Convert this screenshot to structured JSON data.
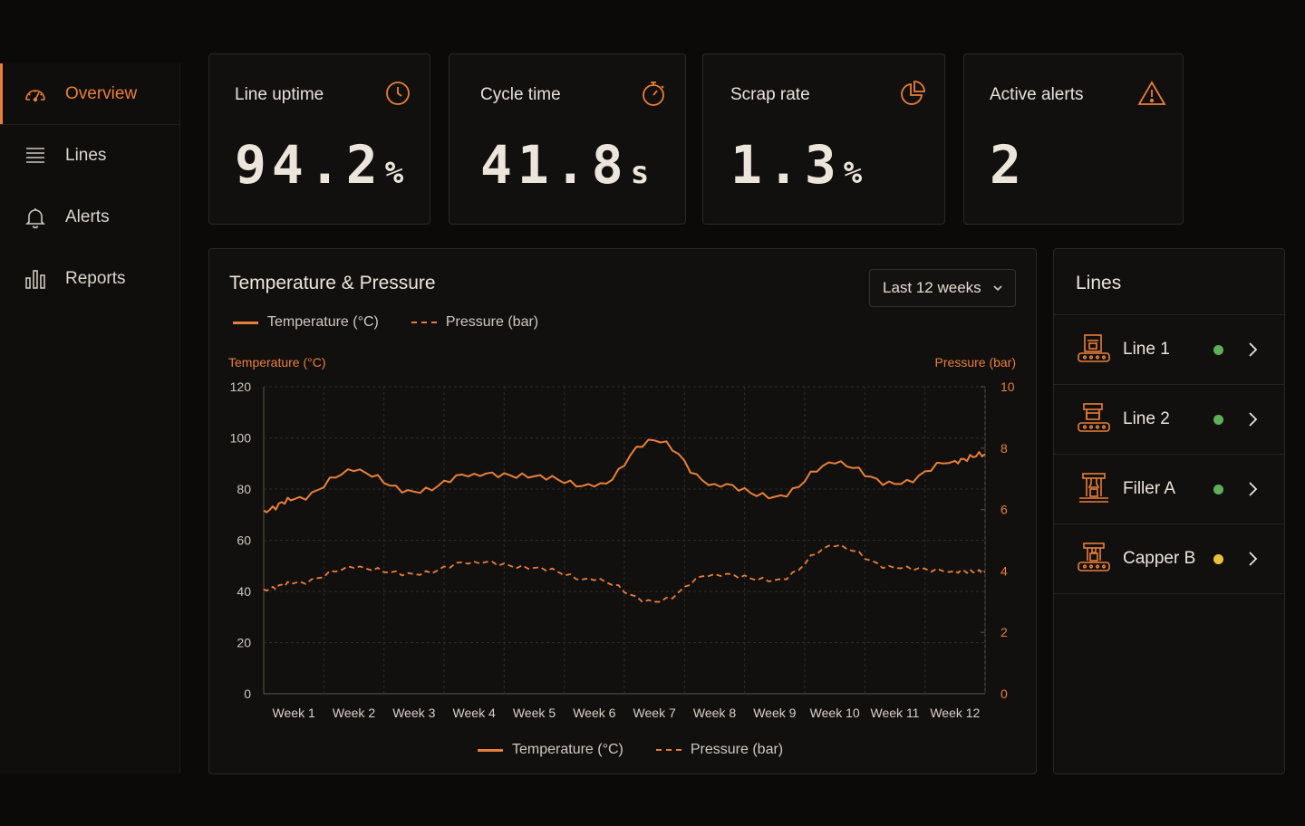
{
  "sidebar": {
    "items": [
      {
        "label": "Overview",
        "icon": "gauge-icon",
        "active": true
      },
      {
        "label": "Lines",
        "icon": "list-icon",
        "active": false
      },
      {
        "label": "Alerts",
        "icon": "bell-icon",
        "active": false
      },
      {
        "label": "Reports",
        "icon": "bar-chart-icon",
        "active": false
      }
    ]
  },
  "kpis": [
    {
      "label": "Line uptime",
      "value": "94.2",
      "unit": "%",
      "icon": "clock-icon"
    },
    {
      "label": "Cycle time",
      "value": "41.8",
      "unit": "s",
      "icon": "stopwatch-icon"
    },
    {
      "label": "Scrap rate",
      "value": "1.3",
      "unit": "%",
      "icon": "pie-icon"
    },
    {
      "label": "Active alerts",
      "value": "2",
      "unit": "",
      "icon": "warning-icon"
    }
  ],
  "chart_panel": {
    "title": "Temperature & Pressure",
    "range_selector": "Last 12 weeks"
  },
  "chart_data": {
    "type": "line",
    "categories": [
      "Week 1",
      "Week 2",
      "Week 3",
      "Week 4",
      "Week 5",
      "Week 6",
      "Week 7",
      "Week 8",
      "Week 9",
      "Week 10",
      "Week 11",
      "Week 12"
    ],
    "xticks": [
      "Week 1",
      "Week 2",
      "Week 3",
      "Week 4",
      "Week 5",
      "Week 6",
      "Week 7",
      "Week 8",
      "Week 9",
      "Week 10",
      "Week 11",
      "Week 12"
    ],
    "y_left": {
      "label": "Temperature (°C)",
      "range": [
        0,
        120
      ],
      "ticks": [
        "120",
        "100",
        "80",
        "60",
        "40",
        "20",
        "0"
      ]
    },
    "y_right": {
      "label": "Pressure (bar)",
      "range": [
        0,
        10
      ],
      "ticks": [
        "10",
        "8",
        "6",
        "4",
        "2",
        "0"
      ]
    },
    "series": [
      {
        "name": "Temperature (°C)",
        "axis": "left",
        "style": "solid",
        "color": "#e87f3a",
        "values": [
          76,
          87,
          79,
          86,
          85,
          81,
          99,
          82,
          77,
          90,
          82,
          91
        ]
      },
      {
        "name": "Pressure (bar)",
        "axis": "right",
        "style": "dashed",
        "color": "#e87f3a",
        "values": [
          3.6,
          4.1,
          3.9,
          4.3,
          4.1,
          3.7,
          3.0,
          3.9,
          3.7,
          4.8,
          4.1,
          4.0
        ]
      }
    ],
    "legend_top": [
      "Temperature (°C)",
      "Pressure (bar)"
    ],
    "legend_bottom": [
      "Temperature (°C)",
      "Pressure (bar)"
    ],
    "grid": true
  },
  "lines_panel": {
    "title": "Lines",
    "rows": [
      {
        "name": "Line 1",
        "status_color": "#5fae5a",
        "icon": "machine-icon"
      },
      {
        "name": "Line 2",
        "status_color": "#5fae5a",
        "icon": "machine-icon"
      },
      {
        "name": "Filler A",
        "status_color": "#5fae5a",
        "icon": "filler-icon"
      },
      {
        "name": "Capper B",
        "status_color": "#e8c23a",
        "icon": "capper-icon"
      }
    ]
  },
  "colors": {
    "accent": "#e87f3a",
    "ok": "#5fae5a",
    "warn": "#e8c23a"
  }
}
